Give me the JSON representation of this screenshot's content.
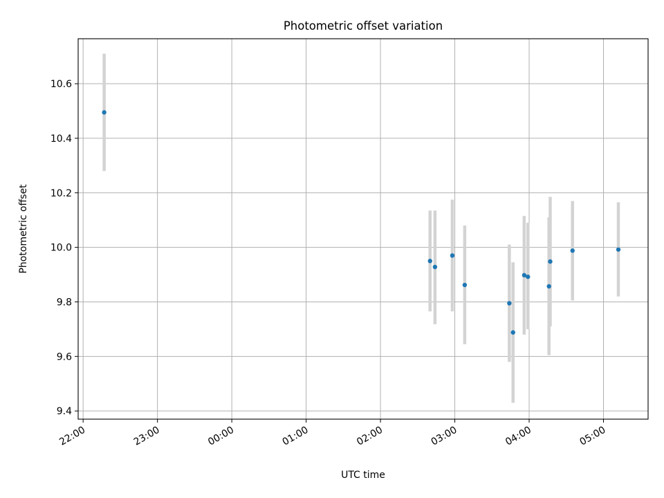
{
  "chart_data": {
    "type": "scatter",
    "title": "Photometric offset variation",
    "xlabel": "UTC time",
    "ylabel": "Photometric offset",
    "x_axis": {
      "kind": "time",
      "range": [
        "21:56",
        "05:36"
      ],
      "ticks": [
        "22:00",
        "23:00",
        "00:00",
        "01:00",
        "02:00",
        "03:00",
        "04:00",
        "05:00"
      ]
    },
    "y_axis": {
      "range": [
        9.37,
        10.765
      ],
      "ticks": [
        "9.4",
        "9.6",
        "9.8",
        "10.0",
        "10.2",
        "10.4",
        "10.6"
      ]
    },
    "grid": true,
    "colors": {
      "points": "#1f77b4",
      "errorbars": "#d3d3d3",
      "grid": "#b0b0b0"
    },
    "points": [
      {
        "time": "22:17",
        "y": 10.495,
        "ylo": 10.28,
        "yhi": 10.71
      },
      {
        "time": "02:40",
        "y": 9.95,
        "ylo": 9.765,
        "yhi": 10.135
      },
      {
        "time": "02:44",
        "y": 9.928,
        "ylo": 9.718,
        "yhi": 10.135
      },
      {
        "time": "02:58",
        "y": 9.97,
        "ylo": 9.765,
        "yhi": 10.175
      },
      {
        "time": "03:08",
        "y": 9.862,
        "ylo": 9.645,
        "yhi": 10.08
      },
      {
        "time": "03:44",
        "y": 9.795,
        "ylo": 9.58,
        "yhi": 10.01
      },
      {
        "time": "03:47",
        "y": 9.688,
        "ylo": 9.43,
        "yhi": 9.945
      },
      {
        "time": "03:56",
        "y": 9.898,
        "ylo": 9.68,
        "yhi": 10.115
      },
      {
        "time": "03:59",
        "y": 9.892,
        "ylo": 9.7,
        "yhi": 10.09
      },
      {
        "time": "04:16",
        "y": 9.857,
        "ylo": 9.605,
        "yhi": 10.11
      },
      {
        "time": "04:17",
        "y": 9.948,
        "ylo": 9.71,
        "yhi": 10.185
      },
      {
        "time": "04:35",
        "y": 9.988,
        "ylo": 9.805,
        "yhi": 10.17
      },
      {
        "time": "05:12",
        "y": 9.992,
        "ylo": 9.82,
        "yhi": 10.165
      }
    ]
  }
}
